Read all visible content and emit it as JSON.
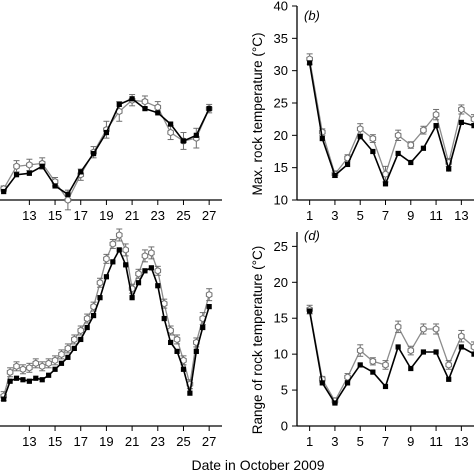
{
  "figure": {
    "shared_xlabel": "Date in October 2009"
  },
  "chart_data": [
    {
      "id": "a",
      "panel_label": "",
      "type": "line",
      "ylabel": "",
      "x_ticks": [
        13,
        15,
        17,
        19,
        21,
        23,
        25,
        27
      ],
      "x": [
        11,
        12,
        13,
        14,
        15,
        16,
        17,
        18,
        19,
        20,
        21,
        22,
        23,
        24,
        25,
        26,
        27
      ],
      "ylim": [
        -8,
        130
      ],
      "series": [
        {
          "style": "grey-open",
          "values": [
            0,
            16,
            17,
            18,
            5,
            -8,
            10,
            26,
            42,
            55,
            63,
            62,
            58,
            40,
            34,
            36,
            57
          ],
          "errors": [
            2,
            4,
            4,
            4,
            3,
            7,
            4,
            4,
            6,
            7,
            4,
            4,
            4,
            5,
            6,
            7,
            3
          ]
        },
        {
          "style": "black-filled",
          "values": [
            -2,
            10,
            11,
            16,
            2,
            -4,
            12,
            25,
            40,
            60,
            64,
            57,
            54,
            46,
            34,
            38,
            57
          ]
        }
      ]
    },
    {
      "id": "b",
      "panel_label": "(b)",
      "type": "line",
      "ylabel": "Max. rock temperature (°C)",
      "x_ticks": [
        1,
        3,
        5,
        7,
        9,
        11,
        13
      ],
      "x": [
        1,
        2,
        3,
        4,
        5,
        6,
        7,
        8,
        9,
        10,
        11,
        12,
        13,
        14
      ],
      "ylim": [
        10,
        40
      ],
      "yticks": [
        10,
        15,
        20,
        25,
        30,
        35,
        40
      ],
      "series": [
        {
          "style": "grey-open",
          "values": [
            31.8,
            20.5,
            14,
            16.5,
            21,
            19.5,
            14,
            20,
            18.5,
            20.8,
            23.2,
            15.8,
            24,
            22.5
          ],
          "errors": [
            0.8,
            0.5,
            0.5,
            0.5,
            0.8,
            0.6,
            1.2,
            0.8,
            0.5,
            0.6,
            0.8,
            0.6,
            0.7,
            0.7
          ]
        },
        {
          "style": "black-filled",
          "values": [
            31.2,
            19.5,
            13.8,
            15.5,
            19.8,
            17.5,
            12.5,
            17.2,
            15.8,
            18,
            21.5,
            14.8,
            22,
            21.5
          ]
        }
      ]
    },
    {
      "id": "c",
      "panel_label": "",
      "type": "line",
      "ylabel": "",
      "x_ticks": [
        13,
        15,
        17,
        19,
        21,
        23,
        25,
        27
      ],
      "x": [
        11,
        11.5,
        12,
        12.5,
        13,
        13.5,
        14,
        14.5,
        15,
        15.5,
        16,
        16.5,
        17,
        17.5,
        18,
        18.5,
        19,
        19.5,
        20,
        20.5,
        21,
        21.5,
        22,
        22.5,
        23,
        23.5,
        24,
        24.5,
        25,
        25.5,
        26,
        26.5,
        27
      ],
      "ylim": [
        0,
        130
      ],
      "series": [
        {
          "style": "grey-open",
          "values": [
            20,
            36,
            40,
            38,
            39,
            42,
            40,
            42,
            44,
            48,
            52,
            58,
            64,
            72,
            80,
            96,
            112,
            122,
            128,
            118,
            92,
            102,
            114,
            116,
            104,
            82,
            64,
            58,
            44,
            28,
            56,
            72,
            88
          ],
          "errors": [
            3,
            3,
            3,
            3,
            3,
            3,
            3,
            3,
            3,
            3,
            3,
            3,
            3,
            3,
            3,
            3,
            3,
            3,
            4,
            4,
            3,
            3,
            4,
            4,
            3,
            3,
            3,
            3,
            3,
            3,
            3,
            4,
            4
          ]
        },
        {
          "style": "black-filled",
          "values": [
            18,
            30,
            32,
            31,
            30,
            32,
            31,
            34,
            38,
            42,
            46,
            52,
            58,
            66,
            74,
            86,
            100,
            110,
            118,
            108,
            86,
            96,
            104,
            106,
            94,
            72,
            56,
            50,
            38,
            22,
            50,
            66,
            80
          ]
        }
      ]
    },
    {
      "id": "d",
      "panel_label": "(d)",
      "type": "line",
      "ylabel": "Range of rock temperature (°C)",
      "x_ticks": [
        1,
        3,
        5,
        7,
        9,
        11,
        13
      ],
      "x": [
        1,
        2,
        3,
        4,
        5,
        6,
        7,
        8,
        9,
        10,
        11,
        12,
        13,
        14
      ],
      "ylim": [
        0,
        27
      ],
      "yticks": [
        0,
        5,
        10,
        15,
        20,
        25
      ],
      "series": [
        {
          "style": "grey-open",
          "values": [
            16.2,
            6.5,
            3.5,
            6.8,
            10.5,
            9,
            8.5,
            13.8,
            10.5,
            13.5,
            13.5,
            8.5,
            12.5,
            11
          ],
          "errors": [
            0.6,
            0.4,
            0.4,
            0.5,
            0.8,
            0.5,
            0.6,
            0.8,
            0.6,
            0.7,
            0.7,
            0.6,
            0.8,
            0.7
          ]
        },
        {
          "style": "black-filled",
          "values": [
            16,
            6,
            3.2,
            6,
            8.5,
            7.5,
            5.5,
            11,
            8,
            10.3,
            10.3,
            6.5,
            11,
            10
          ]
        }
      ]
    }
  ]
}
